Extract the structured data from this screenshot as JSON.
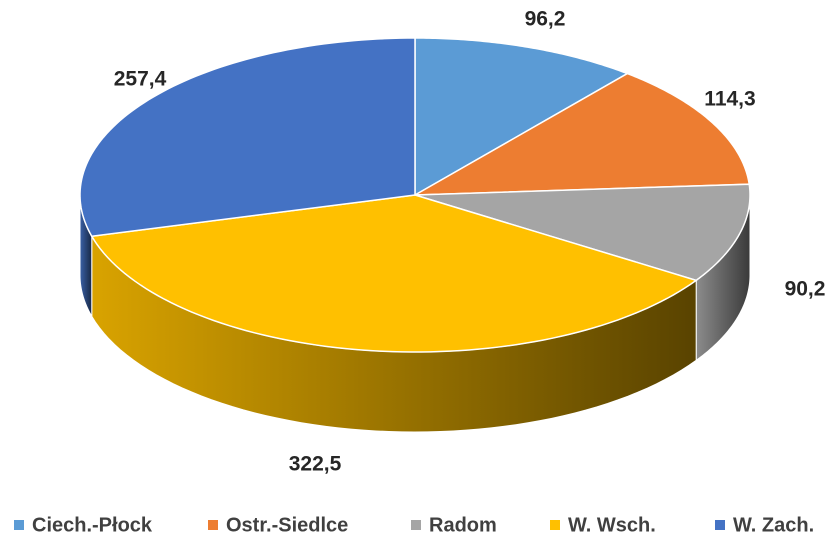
{
  "chart_data": {
    "type": "pie3d",
    "categories": [
      "Ciech.-Płock",
      "Ostr.-Siedlce",
      "Radom",
      "W. Wsch.",
      "W. Zach."
    ],
    "values": [
      96.2,
      114.3,
      90.2,
      322.5,
      257.4
    ],
    "value_labels": [
      "96,2",
      "114,3",
      "90,2",
      "322,5",
      "257,4"
    ],
    "colors": [
      "#5b9bd5",
      "#ed7d31",
      "#a5a5a5",
      "#ffc000",
      "#4472c4"
    ],
    "legend": "bottom"
  }
}
